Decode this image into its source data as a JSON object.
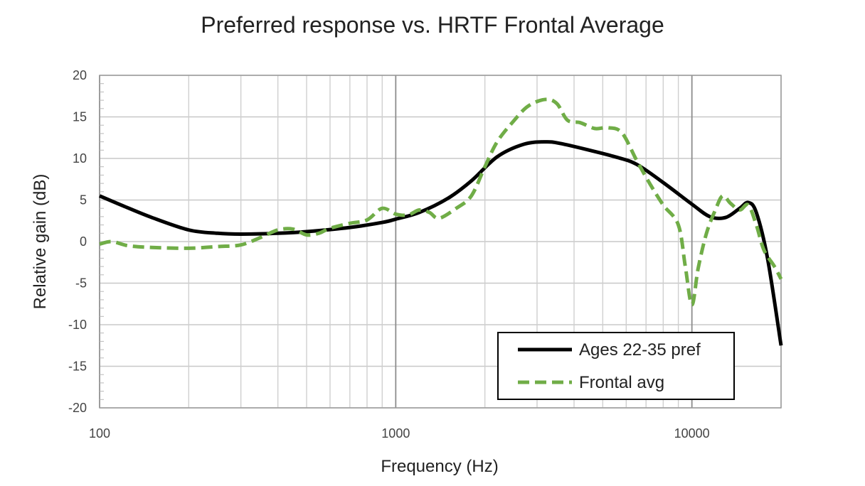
{
  "chart_data": {
    "type": "line",
    "title": "Preferred response vs. HRTF Frontal Average",
    "xlabel": "Frequency (Hz)",
    "ylabel": "Relative gain (dB)",
    "xscale": "log",
    "xlim": [
      100,
      20000
    ],
    "ylim": [
      -20,
      20
    ],
    "xticks": [
      100,
      1000,
      10000
    ],
    "xtick_labels": [
      "100",
      "1000",
      "10000"
    ],
    "yticks": [
      -20,
      -15,
      -10,
      -5,
      0,
      5,
      10,
      15,
      20
    ],
    "ytick_labels": [
      "-20",
      "-15",
      "-10",
      "-5",
      "0",
      "5",
      "10",
      "15",
      "20"
    ],
    "grid": true,
    "legend_position": "bottom-right",
    "series": [
      {
        "name": "Ages 22-35 pref",
        "color": "#000000",
        "style": "solid",
        "x": [
          100,
          120,
          150,
          200,
          250,
          300,
          400,
          500,
          700,
          900,
          1000,
          1200,
          1500,
          1800,
          2200,
          2700,
          3200,
          3600,
          4500,
          5500,
          6500,
          8000,
          10000,
          11500,
          13000,
          14500,
          15500,
          16500,
          18000,
          20000
        ],
        "y": [
          5.5,
          4.3,
          2.9,
          1.4,
          1.0,
          0.9,
          1.0,
          1.2,
          1.7,
          2.3,
          2.7,
          3.5,
          5.2,
          7.3,
          10.2,
          11.7,
          12.0,
          11.8,
          11.0,
          10.2,
          9.3,
          7.1,
          4.5,
          3.0,
          2.9,
          4.0,
          4.7,
          3.5,
          -2.0,
          -12.5
        ]
      },
      {
        "name": "Frontal avg",
        "color": "#70ad47",
        "style": "dashed",
        "x": [
          100,
          110,
          125,
          150,
          200,
          250,
          300,
          350,
          400,
          450,
          500,
          550,
          600,
          700,
          800,
          900,
          1000,
          1100,
          1200,
          1300,
          1400,
          1600,
          1800,
          2000,
          2200,
          2500,
          2800,
          3200,
          3500,
          3800,
          4200,
          4700,
          5200,
          5800,
          6500,
          7200,
          8000,
          9000,
          9500,
          10000,
          10500,
          11200,
          12000,
          12700,
          13500,
          14500,
          15500,
          16500,
          17500,
          19000,
          20000
        ],
        "y": [
          -0.3,
          0.0,
          -0.5,
          -0.7,
          -0.8,
          -0.6,
          -0.4,
          0.5,
          1.4,
          1.5,
          0.8,
          1.0,
          1.6,
          2.2,
          2.6,
          4.0,
          3.3,
          3.2,
          3.8,
          3.5,
          2.8,
          4.0,
          5.5,
          9.0,
          12.0,
          14.5,
          16.3,
          17.1,
          16.6,
          14.6,
          14.3,
          13.6,
          13.7,
          13.1,
          9.8,
          7.0,
          4.4,
          2.0,
          -3.0,
          -7.6,
          -3.2,
          1.0,
          3.8,
          5.5,
          4.6,
          3.8,
          4.4,
          2.0,
          -1.0,
          -3.0,
          -4.5
        ]
      }
    ]
  }
}
